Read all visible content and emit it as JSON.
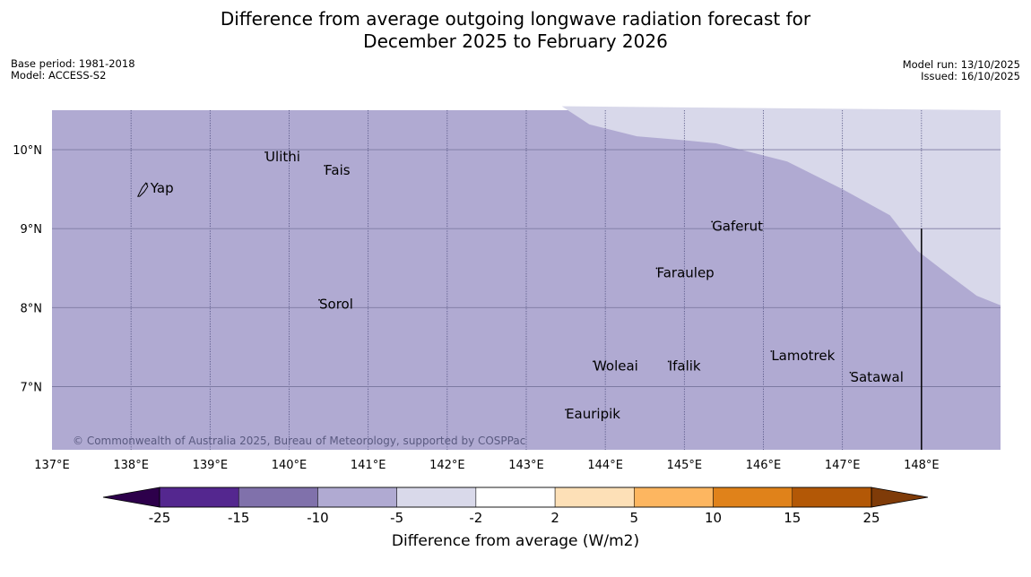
{
  "title": {
    "line1": "Difference from average outgoing longwave radiation forecast for",
    "line2": "December 2025 to February 2026"
  },
  "meta_left": {
    "base_period": "Base period: 1981-2018",
    "model": "Model: ACCESS-S2"
  },
  "meta_right": {
    "model_run": "Model run: 13/10/2025",
    "issued": "Issued: 16/10/2025"
  },
  "map": {
    "lon_range": [
      137,
      149
    ],
    "lat_range": [
      6.2,
      10.5
    ],
    "lon_ticks": [
      137,
      138,
      139,
      140,
      141,
      142,
      143,
      144,
      145,
      146,
      147,
      148
    ],
    "lon_tick_labels": [
      "137°E",
      "138°E",
      "139°E",
      "140°E",
      "141°E",
      "142°E",
      "143°E",
      "144°E",
      "145°E",
      "146°E",
      "147°E",
      "148°E"
    ],
    "lat_ticks": [
      10,
      9,
      8,
      7
    ],
    "lat_tick_labels": [
      "10°N",
      "9°N",
      "8°N",
      "7°N"
    ],
    "base_color": "#b0aad2",
    "light_region_color": "#d8d8ea",
    "grid_color": "#4a4a7a",
    "copyright": "© Commonwealth of Australia 2025, Bureau of Meteorology, supported by COSPPac",
    "places": [
      {
        "name": "Yap",
        "lon": 138.2,
        "lat": 9.5
      },
      {
        "name": "Ulithi",
        "lon": 139.7,
        "lat": 9.9
      },
      {
        "name": "Fais",
        "lon": 140.45,
        "lat": 9.73
      },
      {
        "name": "Gaferut",
        "lon": 145.35,
        "lat": 9.02
      },
      {
        "name": "Faraulep",
        "lon": 144.65,
        "lat": 8.43
      },
      {
        "name": "Sorol",
        "lon": 140.38,
        "lat": 8.03
      },
      {
        "name": "Woleai",
        "lon": 143.85,
        "lat": 7.25
      },
      {
        "name": "Ifalik",
        "lon": 144.8,
        "lat": 7.25
      },
      {
        "name": "Lamotrek",
        "lon": 146.1,
        "lat": 7.38
      },
      {
        "name": "Satawal",
        "lon": 147.1,
        "lat": 7.11
      },
      {
        "name": "Eauripik",
        "lon": 143.5,
        "lat": 6.64
      }
    ]
  },
  "colorbar": {
    "label": "Difference from average (W/m2)",
    "tick_labels": [
      "-25",
      "-15",
      "-10",
      "-5",
      "-2",
      "2",
      "5",
      "10",
      "15",
      "25"
    ],
    "colors": [
      "#54278f",
      "#8071ab",
      "#b0aad2",
      "#d9d9ea",
      "#ffffff",
      "#fde0b7",
      "#fdb660",
      "#e0821a",
      "#b35806"
    ],
    "extend_low_color": "#2d004b",
    "extend_high_color": "#7f3b08"
  }
}
